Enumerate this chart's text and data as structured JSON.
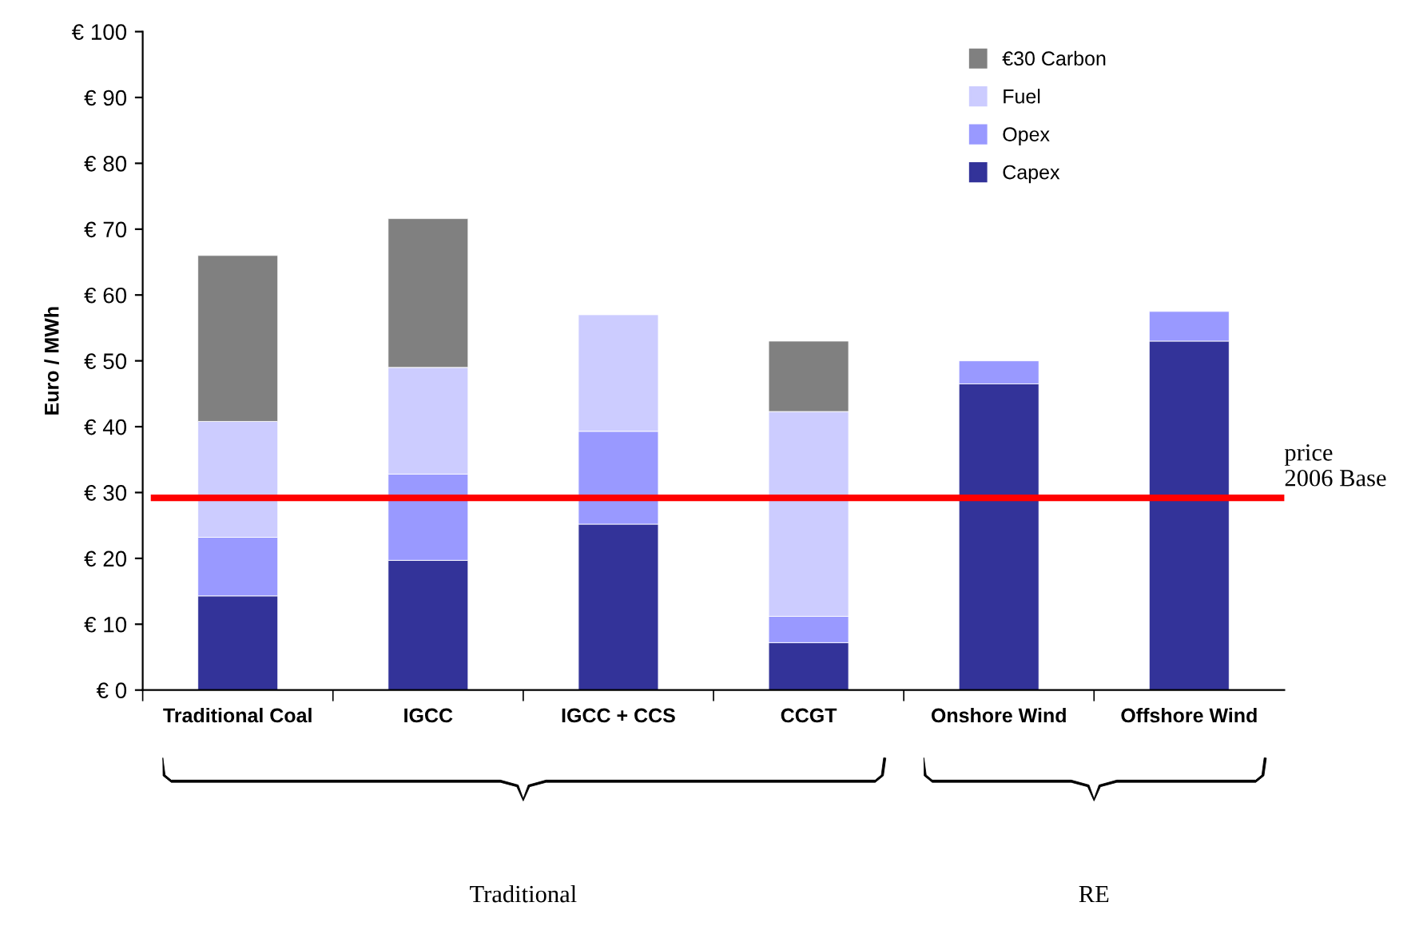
{
  "chart_data": {
    "type": "bar",
    "stacked": true,
    "ylabel": "Euro / MWh",
    "categories": [
      "Traditional Coal",
      "IGCC",
      "IGCC + CCS",
      "CCGT",
      "Onshore Wind",
      "Offshore Wind"
    ],
    "series": [
      {
        "name": "Capex",
        "color": "#333399",
        "values": [
          14.3,
          19.7,
          25.2,
          7.2,
          46.5,
          53
        ]
      },
      {
        "name": "Opex",
        "color": "#9999ff",
        "values": [
          8.9,
          13.1,
          14.1,
          4,
          3.5,
          4.5
        ]
      },
      {
        "name": "Fuel",
        "color": "#ccccff",
        "values": [
          17.6,
          16.2,
          17.7,
          31.1,
          null,
          null
        ]
      },
      {
        "name": "€30 Carbon",
        "color": "#808080",
        "values": [
          25.2,
          22.6,
          null,
          10.7,
          null,
          null
        ]
      }
    ],
    "ylim": [
      0,
      100
    ],
    "yticks": [
      {
        "value": 0,
        "label": "€ 0"
      },
      {
        "value": 10,
        "label": "€ 10"
      },
      {
        "value": 20,
        "label": "€ 20"
      },
      {
        "value": 30,
        "label": "€ 30"
      },
      {
        "value": 40,
        "label": "€ 40"
      },
      {
        "value": 50,
        "label": "€ 50"
      },
      {
        "value": 60,
        "label": "€ 60"
      },
      {
        "value": 70,
        "label": "€ 70"
      },
      {
        "value": 80,
        "label": "€ 80"
      },
      {
        "value": 90,
        "label": "€ 90"
      },
      {
        "value": 100,
        "label": "€ 100"
      }
    ],
    "ref_lines": [
      {
        "axis": "y",
        "value": 29.2,
        "label": "price\n2006 Base",
        "color": "#ff0000"
      }
    ],
    "annotations": [
      "Traditional",
      "RE"
    ],
    "grid": false,
    "legend": "top right"
  }
}
